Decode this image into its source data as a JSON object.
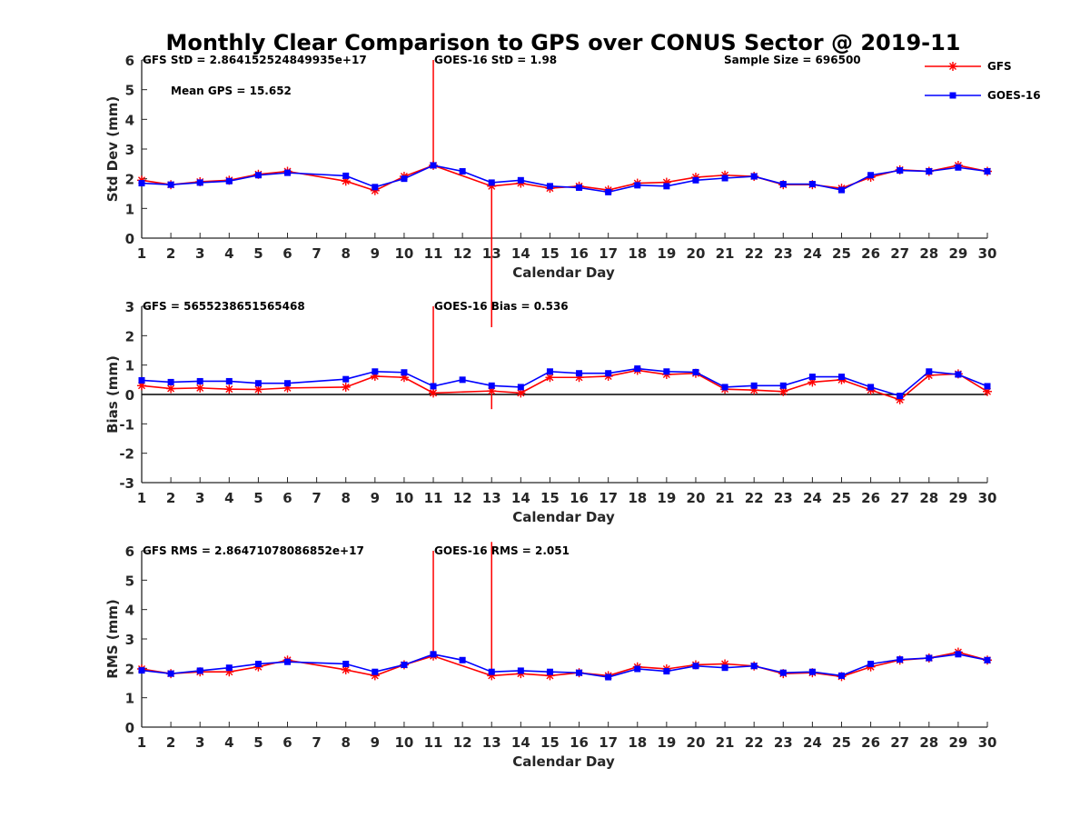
{
  "figure": {
    "title": "Monthly Clear Comparison to GPS over CONUS Sector @ 2019-11"
  },
  "legend": {
    "entries": [
      {
        "label": "GFS",
        "color": "#ff0000",
        "marker": "star"
      },
      {
        "label": "GOES-16",
        "color": "#0000ff",
        "marker": "square"
      }
    ],
    "location": "top-right"
  },
  "chart_data": [
    {
      "type": "line",
      "xlabel": "Calendar Day",
      "ylabel": "Std Dev (mm)",
      "xlim": [
        1,
        30
      ],
      "ylim": [
        0,
        6
      ],
      "xticks": [
        1,
        2,
        3,
        4,
        5,
        6,
        7,
        8,
        9,
        10,
        11,
        12,
        13,
        14,
        15,
        16,
        17,
        18,
        19,
        20,
        21,
        22,
        23,
        24,
        25,
        26,
        27,
        28,
        29,
        30
      ],
      "yticks": [
        0,
        1,
        2,
        3,
        4,
        5,
        6
      ],
      "zero_line": false,
      "annotations": [
        {
          "text": "GFS StD = 2.864152524849935e+17",
          "anchor": "top-left"
        },
        {
          "text": "GOES-16 StD = 1.98",
          "anchor": "top-center"
        },
        {
          "text": "Sample Size = 696500",
          "anchor": "top-right"
        },
        {
          "text": "Mean GPS = 15.652",
          "anchor": "upper-left"
        }
      ],
      "series": [
        {
          "name": "GFS",
          "color": "#ff0000",
          "marker": "star",
          "x": [
            1,
            2,
            3,
            4,
            5,
            6,
            8,
            9,
            10,
            11,
            13,
            14,
            15,
            16,
            17,
            18,
            19,
            20,
            21,
            22,
            23,
            24,
            25,
            26,
            27,
            28,
            29,
            30
          ],
          "values": [
            1.95,
            1.8,
            1.9,
            1.95,
            2.15,
            2.25,
            1.92,
            1.6,
            2.08,
            2.45,
            1.75,
            1.85,
            1.68,
            1.75,
            1.62,
            1.85,
            1.88,
            2.05,
            2.12,
            2.08,
            1.8,
            1.8,
            1.68,
            2.05,
            2.3,
            2.25,
            2.45,
            2.25
          ],
          "spikes": [
            {
              "x": 13,
              "to": -3
            }
          ]
        },
        {
          "name": "GOES-16",
          "color": "#0000ff",
          "marker": "square",
          "x": [
            1,
            2,
            3,
            4,
            5,
            6,
            8,
            9,
            10,
            11,
            12,
            13,
            14,
            15,
            16,
            17,
            18,
            19,
            20,
            21,
            22,
            23,
            24,
            25,
            26,
            27,
            28,
            29,
            30
          ],
          "values": [
            1.85,
            1.8,
            1.87,
            1.92,
            2.12,
            2.2,
            2.1,
            1.72,
            2.0,
            2.45,
            2.25,
            1.87,
            1.95,
            1.75,
            1.7,
            1.55,
            1.78,
            1.75,
            1.95,
            2.02,
            2.08,
            1.82,
            1.82,
            1.62,
            2.12,
            2.28,
            2.25,
            2.38,
            2.25
          ],
          "spikes": []
        }
      ],
      "spikes": [
        {
          "x": 11,
          "from": 2.45,
          "to": 6
        }
      ]
    },
    {
      "type": "line",
      "xlabel": "Calendar Day",
      "ylabel": "Bias (mm)",
      "xlim": [
        1,
        30
      ],
      "ylim": [
        -3,
        3
      ],
      "xticks": [
        1,
        2,
        3,
        4,
        5,
        6,
        7,
        8,
        9,
        10,
        11,
        12,
        13,
        14,
        15,
        16,
        17,
        18,
        19,
        20,
        21,
        22,
        23,
        24,
        25,
        26,
        27,
        28,
        29,
        30
      ],
      "yticks": [
        -3,
        -2,
        -1,
        0,
        1,
        2,
        3
      ],
      "zero_line": true,
      "annotations": [
        {
          "text": "GFS = 5655238651565468",
          "anchor": "top-left"
        },
        {
          "text": "GOES-16 Bias = 0.536",
          "anchor": "top-center"
        }
      ],
      "series": [
        {
          "name": "GFS",
          "color": "#ff0000",
          "marker": "star",
          "x": [
            1,
            2,
            3,
            4,
            5,
            6,
            8,
            9,
            10,
            11,
            13,
            14,
            15,
            16,
            17,
            18,
            19,
            20,
            21,
            22,
            23,
            24,
            25,
            26,
            27,
            28,
            29,
            30
          ],
          "values": [
            0.3,
            0.2,
            0.22,
            0.18,
            0.17,
            0.22,
            0.25,
            0.62,
            0.58,
            0.05,
            0.12,
            0.05,
            0.58,
            0.58,
            0.62,
            0.82,
            0.68,
            0.72,
            0.18,
            0.15,
            0.1,
            0.42,
            0.5,
            0.15,
            -0.18,
            0.65,
            0.7,
            0.1
          ],
          "spikes": [
            {
              "x": 13,
              "to": -0.5
            }
          ]
        },
        {
          "name": "GOES-16",
          "color": "#0000ff",
          "marker": "square",
          "x": [
            1,
            2,
            3,
            4,
            5,
            6,
            8,
            9,
            10,
            11,
            12,
            13,
            14,
            15,
            16,
            17,
            18,
            19,
            20,
            21,
            22,
            23,
            24,
            25,
            26,
            27,
            28,
            29,
            30
          ],
          "values": [
            0.48,
            0.42,
            0.45,
            0.45,
            0.38,
            0.38,
            0.52,
            0.78,
            0.75,
            0.28,
            0.5,
            0.3,
            0.25,
            0.78,
            0.72,
            0.72,
            0.88,
            0.78,
            0.76,
            0.25,
            0.3,
            0.3,
            0.6,
            0.6,
            0.25,
            -0.05,
            0.78,
            0.68,
            0.28
          ],
          "spikes": []
        }
      ],
      "spikes": [
        {
          "x": 11,
          "from": 0.05,
          "to": 3
        }
      ]
    },
    {
      "type": "line",
      "xlabel": "Calendar Day",
      "ylabel": "RMS (mm)",
      "xlim": [
        1,
        30
      ],
      "ylim": [
        0,
        6
      ],
      "xticks": [
        1,
        2,
        3,
        4,
        5,
        6,
        7,
        8,
        9,
        10,
        11,
        12,
        13,
        14,
        15,
        16,
        17,
        18,
        19,
        20,
        21,
        22,
        23,
        24,
        25,
        26,
        27,
        28,
        29,
        30
      ],
      "yticks": [
        0,
        1,
        2,
        3,
        4,
        5,
        6
      ],
      "zero_line": false,
      "annotations": [
        {
          "text": "GFS RMS = 2.86471078086852e+17",
          "anchor": "top-left"
        },
        {
          "text": "GOES-16 RMS = 2.051",
          "anchor": "top-center"
        }
      ],
      "series": [
        {
          "name": "GFS",
          "color": "#ff0000",
          "marker": "star",
          "x": [
            1,
            2,
            3,
            4,
            5,
            6,
            8,
            9,
            10,
            11,
            13,
            14,
            15,
            16,
            17,
            18,
            19,
            20,
            21,
            22,
            23,
            24,
            25,
            26,
            27,
            28,
            29,
            30
          ],
          "values": [
            1.98,
            1.82,
            1.88,
            1.88,
            2.05,
            2.28,
            1.95,
            1.75,
            2.12,
            2.42,
            1.75,
            1.82,
            1.75,
            1.85,
            1.75,
            2.05,
            1.98,
            2.12,
            2.15,
            2.08,
            1.82,
            1.85,
            1.72,
            2.05,
            2.28,
            2.35,
            2.55,
            2.28
          ],
          "spikes": [
            {
              "x": 13,
              "to": 6.3
            }
          ]
        },
        {
          "name": "GOES-16",
          "color": "#0000ff",
          "marker": "square",
          "x": [
            1,
            2,
            3,
            4,
            5,
            6,
            8,
            9,
            10,
            11,
            12,
            13,
            14,
            15,
            16,
            17,
            18,
            19,
            20,
            21,
            22,
            23,
            24,
            25,
            26,
            27,
            28,
            29,
            30
          ],
          "values": [
            1.93,
            1.82,
            1.92,
            2.02,
            2.15,
            2.22,
            2.15,
            1.88,
            2.12,
            2.48,
            2.28,
            1.88,
            1.92,
            1.88,
            1.85,
            1.7,
            1.98,
            1.9,
            2.08,
            2.02,
            2.08,
            1.85,
            1.88,
            1.75,
            2.15,
            2.3,
            2.35,
            2.48,
            2.28
          ],
          "spikes": []
        }
      ],
      "spikes": [
        {
          "x": 11,
          "from": 2.42,
          "to": 6
        }
      ]
    }
  ]
}
